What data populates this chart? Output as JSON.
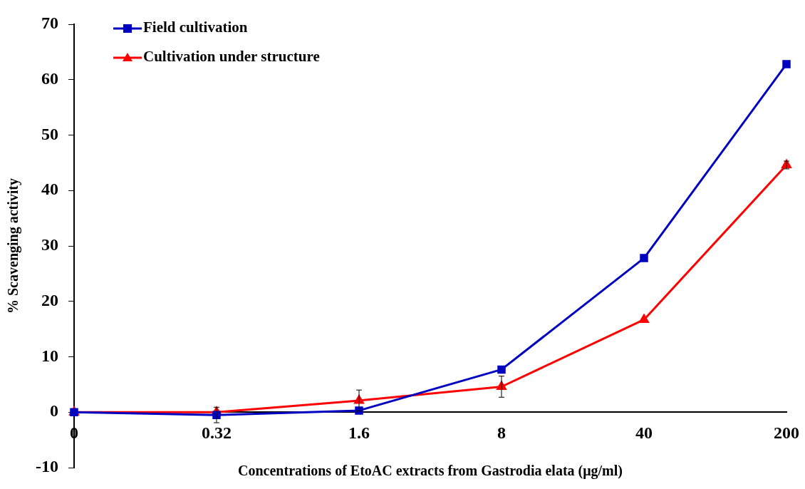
{
  "chart_data": {
    "type": "line",
    "xlabel": "Concentrations of EtoAC extracts from Gastrodia elata (μg/ml)",
    "ylabel": "% Scavenging activity",
    "categories": [
      "0",
      "0.32",
      "1.6",
      "8",
      "40",
      "200"
    ],
    "series": [
      {
        "name": "Field cultivation",
        "color": "#0000c0",
        "marker": "square",
        "values": [
          0,
          -0.5,
          0.3,
          7.7,
          27.8,
          62.8
        ],
        "errors": [
          null,
          1.4,
          null,
          null,
          null,
          null
        ]
      },
      {
        "name": "Cultivation under structure",
        "color": "#ff0000",
        "marker": "triangle",
        "values": [
          0,
          0,
          2.1,
          4.6,
          16.7,
          44.6
        ],
        "errors": [
          null,
          null,
          1.9,
          1.9,
          null,
          0.7
        ]
      }
    ],
    "ylim": [
      -10,
      70
    ],
    "yticks": [
      -10,
      0,
      10,
      20,
      30,
      40,
      50,
      60,
      70
    ],
    "grid": false,
    "legend": "top left",
    "line_style": "solid"
  }
}
